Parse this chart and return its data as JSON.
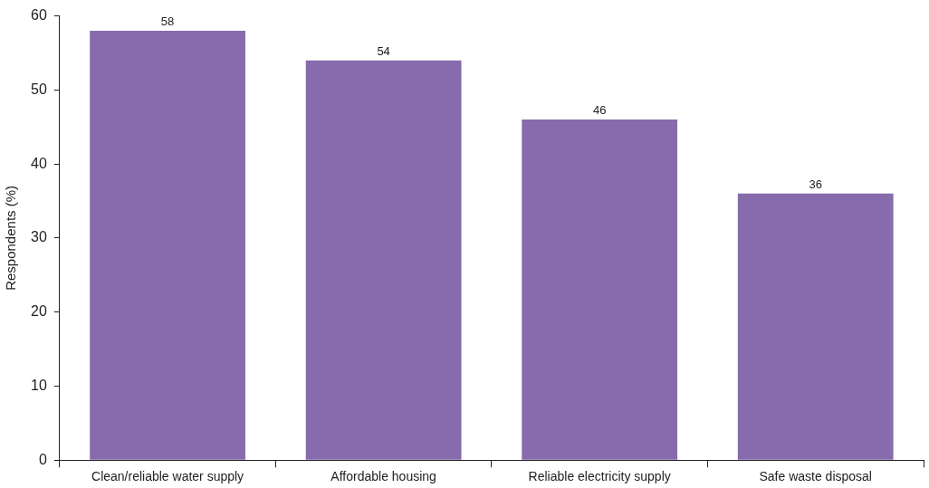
{
  "chart_data": {
    "type": "bar",
    "ylabel": "Respondents (%)",
    "categories": [
      "Clean/reliable water supply",
      "Affordable housing",
      "Reliable electricity supply",
      "Safe waste disposal"
    ],
    "values": [
      58,
      54,
      46,
      36
    ],
    "color": "#866bad",
    "ylim": [
      0,
      60
    ],
    "yticks": [
      0,
      10,
      20,
      30,
      40,
      50,
      60
    ],
    "grid": false,
    "data_labels": true
  }
}
